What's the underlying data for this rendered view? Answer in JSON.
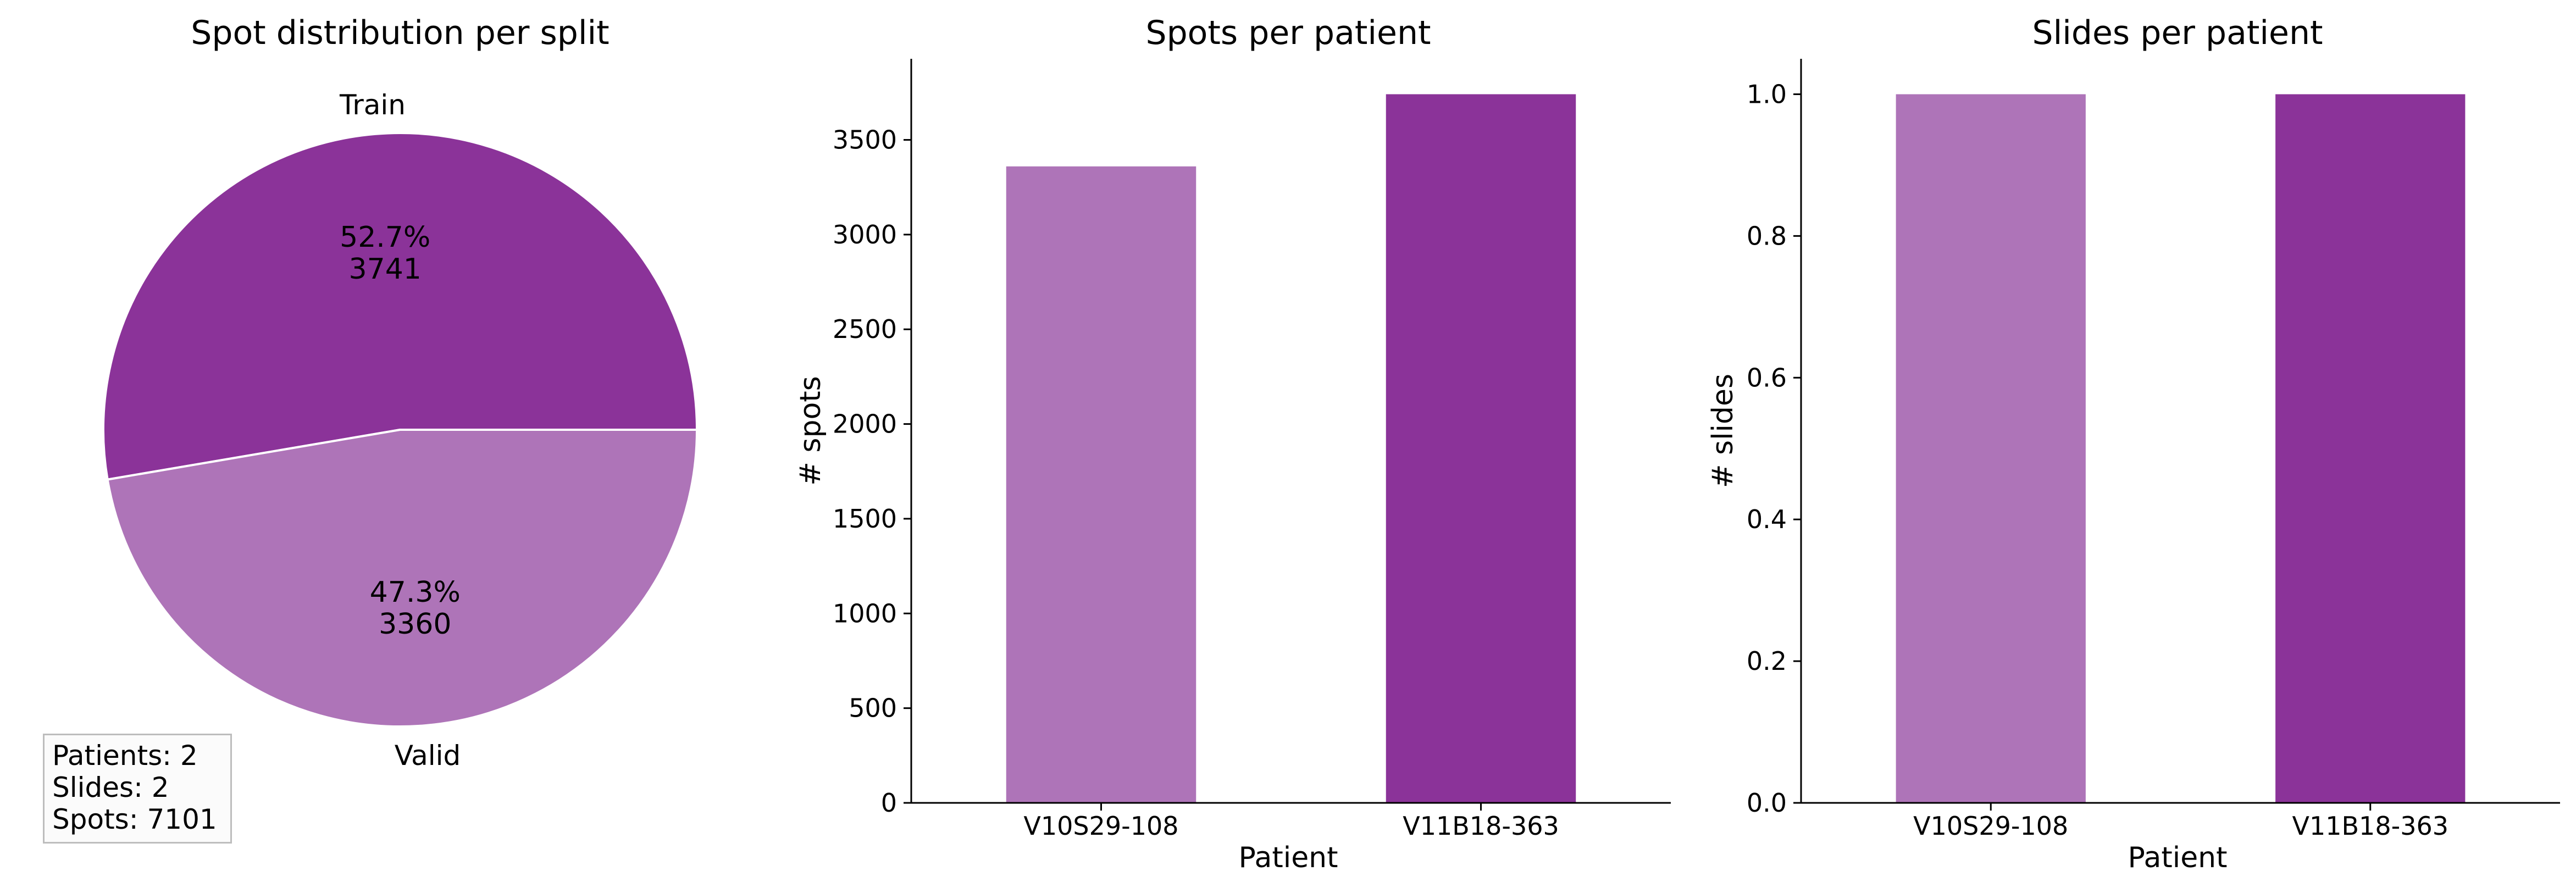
{
  "summary": {
    "patients": "Patients: 2",
    "slides": "Slides: 2",
    "spots": "Spots: 7101"
  },
  "colors": {
    "train": "#8b3399",
    "valid": "#ae74b8"
  },
  "chart_data": [
    {
      "type": "pie",
      "title": "Spot distribution per split",
      "labels": [
        "Train",
        "Valid"
      ],
      "values": [
        3741,
        3360
      ],
      "percent_labels": [
        "52.7%",
        "47.3%"
      ],
      "count_labels": [
        "3741",
        "3360"
      ],
      "colors": [
        "#8b3399",
        "#ae74b8"
      ]
    },
    {
      "type": "bar",
      "title": "Spots per patient",
      "xlabel": "Patient",
      "ylabel": "# spots",
      "categories": [
        "V10S29-108",
        "V11B18-363"
      ],
      "values": [
        3360,
        3741
      ],
      "colors": [
        "#ae74b8",
        "#8b3399"
      ],
      "ylim": [
        0,
        3928
      ],
      "yticks": [
        0,
        500,
        1000,
        1500,
        2000,
        2500,
        3000,
        3500
      ],
      "ytick_labels": [
        "0",
        "500",
        "1000",
        "1500",
        "2000",
        "2500",
        "3000",
        "3500"
      ]
    },
    {
      "type": "bar",
      "title": "Slides per patient",
      "xlabel": "Patient",
      "ylabel": "# slides",
      "categories": [
        "V10S29-108",
        "V11B18-363"
      ],
      "values": [
        1,
        1
      ],
      "colors": [
        "#ae74b8",
        "#8b3399"
      ],
      "ylim": [
        0,
        1.05
      ],
      "yticks": [
        0,
        0.2,
        0.4,
        0.6,
        0.8,
        1.0
      ],
      "ytick_labels": [
        "0.0",
        "0.2",
        "0.4",
        "0.6",
        "0.8",
        "1.0"
      ]
    }
  ]
}
